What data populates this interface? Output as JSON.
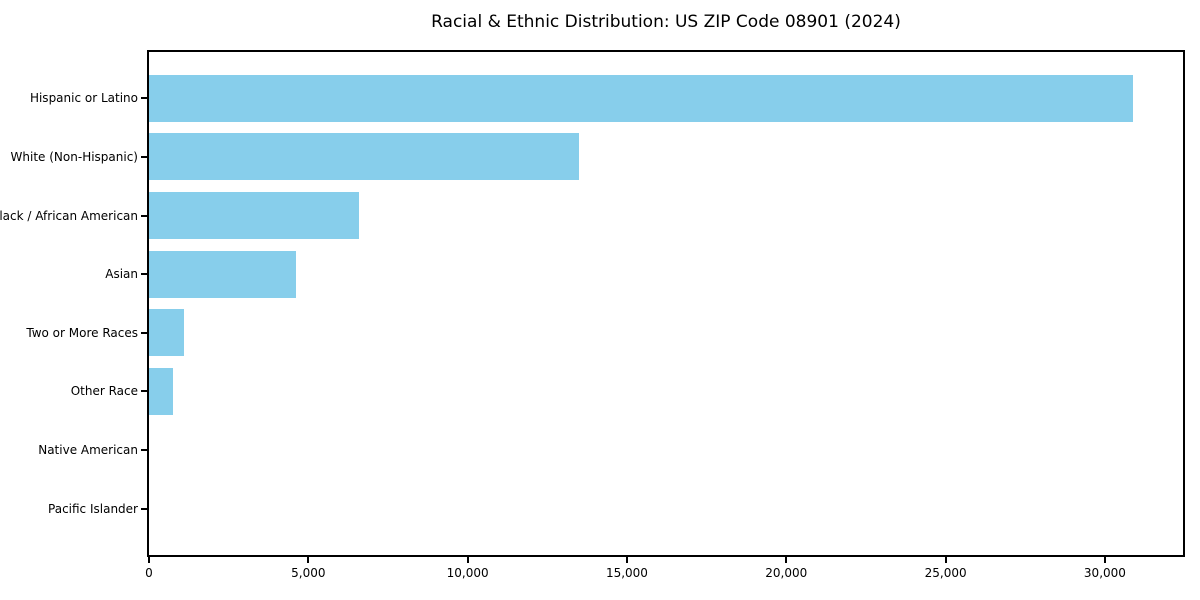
{
  "chart_data": {
    "type": "bar",
    "orientation": "horizontal",
    "title": "Racial & Ethnic Distribution: US ZIP Code 08901 (2024)",
    "categories": [
      "Hispanic or Latino",
      "White (Non-Hispanic)",
      "Black / African American",
      "Asian",
      "Two or More Races",
      "Other Race",
      "Native American",
      "Pacific Islander"
    ],
    "values": [
      30875,
      13480,
      6600,
      4600,
      1090,
      740,
      0,
      0
    ],
    "xlabel": "",
    "ylabel": "",
    "xlim": [
      0,
      32450
    ],
    "xticks": [
      0,
      5000,
      10000,
      15000,
      20000,
      25000,
      30000
    ],
    "xtick_labels": [
      "0",
      "5,000",
      "10,000",
      "15,000",
      "20,000",
      "25,000",
      "30,000"
    ],
    "grid": false,
    "legend_position": "none",
    "bar_color": "#87CEEB",
    "text_color": "#000000",
    "background_color": "#ffffff",
    "spine_color": "#000000"
  }
}
